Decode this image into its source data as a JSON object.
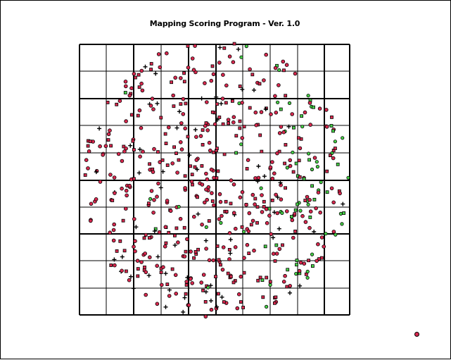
{
  "window": {
    "title": "Mapping Scoring Program  -  Ver. 1.0"
  },
  "colors": {
    "background": "#ffffff",
    "grid_line": "#000000",
    "marker_red": "#d8284e",
    "marker_green": "#46d146",
    "marker_outline": "#000000"
  },
  "grid": {
    "columns": 10,
    "rows": 10,
    "bold_column_indices": [
      0,
      2,
      4,
      5,
      9,
      10
    ],
    "bold_row_indices": [
      0,
      2,
      5,
      7,
      10
    ]
  },
  "scatter": {
    "shape": "disc",
    "point_count": 620,
    "green_bias": "right-half",
    "seed": 7
  }
}
